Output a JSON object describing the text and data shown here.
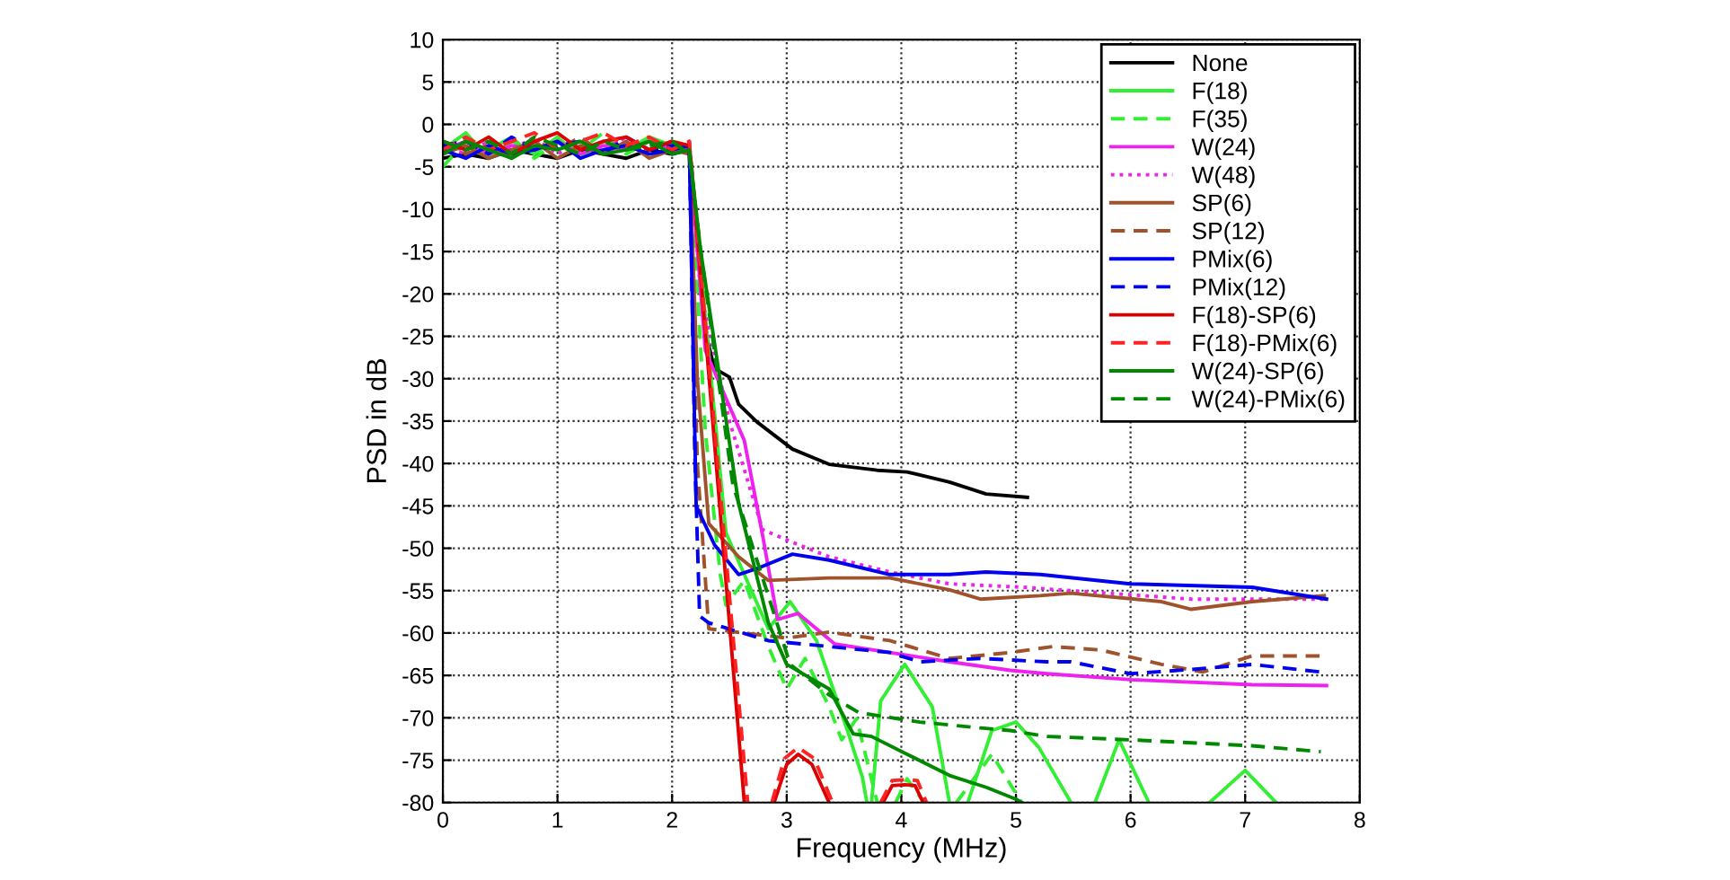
{
  "chart_data": {
    "type": "line",
    "xlabel": "Frequency (MHz)",
    "ylabel": "PSD in dB",
    "xlim": [
      0,
      8
    ],
    "ylim": [
      -80,
      10
    ],
    "xticks": [
      0,
      1,
      2,
      3,
      4,
      5,
      6,
      7,
      8
    ],
    "yticks": [
      -80,
      -75,
      -70,
      -65,
      -60,
      -55,
      -50,
      -45,
      -40,
      -35,
      -30,
      -25,
      -20,
      -15,
      -10,
      -5,
      0,
      5,
      10
    ],
    "grid": true,
    "legend": "top right",
    "marker": "none",
    "series": [
      {
        "name": "None",
        "color": "#000000",
        "line_style": "solid",
        "x": [
          0,
          0.2,
          0.4,
          0.6,
          0.8,
          1.0,
          1.2,
          1.4,
          1.6,
          1.8,
          2.0,
          2.15,
          2.29,
          2.37,
          2.5,
          2.58,
          2.74,
          3.05,
          3.37,
          3.79,
          4.05,
          4.42,
          4.74,
          5.1
        ],
        "values": [
          -4,
          -3.5,
          -4,
          -3,
          -3.5,
          -4,
          -3,
          -3.5,
          -4,
          -3,
          -3.5,
          -3,
          -24.5,
          -28.8,
          -29.8,
          -33,
          -35.1,
          -38.3,
          -40.1,
          -40.8,
          -41,
          -42.2,
          -43.6,
          -44
        ]
      },
      {
        "name": "F(18)",
        "color": "#33ee33",
        "line_style": "solid",
        "x": [
          0,
          0.2,
          0.4,
          0.6,
          0.8,
          1.0,
          1.2,
          1.4,
          1.6,
          1.8,
          2.0,
          2.15,
          2.2,
          2.47,
          2.63,
          2.84,
          3.03,
          3.26,
          3.53,
          3.66,
          3.7,
          3.72,
          3.74,
          3.82,
          4.03,
          4.27,
          4.42,
          4.5,
          4.58,
          4.79,
          5.0,
          5.2,
          5.48,
          5.6,
          5.69,
          5.9,
          6.16,
          6.4,
          6.69,
          7.0,
          7.27
        ],
        "values": [
          -3,
          -1,
          -4,
          -2,
          -3.5,
          -1.5,
          -4,
          -2,
          -3,
          -1.5,
          -2.5,
          -3,
          -10,
          -48.2,
          -53.1,
          -59.5,
          -56.3,
          -60.9,
          -71.5,
          -77,
          -80,
          null,
          -80,
          -68,
          -63.7,
          -68.7,
          -80,
          null,
          -80,
          -71.5,
          -70.5,
          -73.5,
          -80,
          null,
          -80,
          -72.6,
          -80,
          null,
          -80,
          -76.2,
          -80
        ]
      },
      {
        "name": "F(35)",
        "color": "#33ee33",
        "line_style": "dashed",
        "x": [
          0,
          0.2,
          0.4,
          0.6,
          0.8,
          1.0,
          1.2,
          1.4,
          1.6,
          1.8,
          2.0,
          2.15,
          2.29,
          2.42,
          2.47,
          2.63,
          2.84,
          3.0,
          3.16,
          3.37,
          3.48,
          3.61,
          3.79,
          3.87,
          3.95,
          4.05,
          4.2,
          4.35,
          4.48,
          4.79,
          5.05
        ],
        "values": [
          -5,
          -2,
          -3,
          -1.5,
          -4,
          -2,
          -3,
          -1,
          -3.5,
          -2,
          -3,
          -2.5,
          -36.2,
          -53.1,
          -56.7,
          -53.8,
          -61.6,
          -66.6,
          -63,
          -68.7,
          -72.6,
          -70.1,
          -80,
          null,
          -80,
          -77.2,
          -80,
          null,
          -80,
          -74.3,
          -80
        ]
      },
      {
        "name": "W(24)",
        "color": "#ee22ee",
        "line_style": "solid",
        "x": [
          0,
          0.2,
          0.4,
          0.6,
          0.8,
          1.0,
          1.2,
          1.4,
          1.6,
          1.8,
          2.0,
          2.15,
          2.29,
          2.63,
          2.79,
          2.92,
          3.1,
          3.42,
          3.9,
          4.42,
          4.95,
          5.27,
          6.0,
          7.06,
          7.71
        ],
        "values": [
          -3,
          -2,
          -3.5,
          -2.5,
          -3,
          -2,
          -3.5,
          -2.5,
          -3,
          -2,
          -3,
          -2.5,
          -26.7,
          -37.3,
          -48.5,
          -58.4,
          -57.7,
          -61.3,
          -62.3,
          -63.4,
          -64.4,
          -64.8,
          -65.5,
          -66.1,
          -66.2
        ]
      },
      {
        "name": "W(48)",
        "color": "#ee22ee",
        "line_style": "dotted",
        "x": [
          0,
          0.2,
          0.4,
          0.6,
          0.8,
          1.0,
          1.2,
          1.4,
          1.6,
          1.8,
          2.0,
          2.15,
          2.25,
          2.5,
          2.79,
          3.05,
          3.37,
          3.9,
          4.42,
          5.06,
          6.53,
          7.71
        ],
        "values": [
          -2.5,
          -3.5,
          -2,
          -3,
          -1.5,
          -3.5,
          -2,
          -3,
          -1.5,
          -3,
          -2,
          -3,
          -20,
          -35,
          -47.8,
          -49.3,
          -51,
          -52.8,
          -54.2,
          -54.6,
          -56,
          -56
        ]
      },
      {
        "name": "SP(6)",
        "color": "#a0522d",
        "line_style": "solid",
        "x": [
          0,
          0.2,
          0.4,
          0.6,
          0.8,
          1.0,
          1.2,
          1.4,
          1.6,
          1.8,
          2.0,
          2.15,
          2.22,
          2.32,
          2.58,
          2.84,
          3.37,
          3.9,
          4.42,
          4.69,
          5.21,
          5.48,
          6.27,
          6.53,
          7.06,
          7.69
        ],
        "values": [
          -3.5,
          -2.5,
          -4,
          -3,
          -2,
          -4,
          -2.5,
          -3.5,
          -2,
          -4,
          -3,
          -3.5,
          -30,
          -47.1,
          -51,
          -53.8,
          -53.5,
          -53.5,
          -54.9,
          -56,
          -55.6,
          -55.3,
          -56.3,
          -57.2,
          -56.3,
          -55.6
        ]
      },
      {
        "name": "SP(12)",
        "color": "#a0522d",
        "line_style": "dashed",
        "x": [
          0,
          0.2,
          0.4,
          0.6,
          0.8,
          1.0,
          1.2,
          1.4,
          1.6,
          1.8,
          2.0,
          2.15,
          2.22,
          2.32,
          3.0,
          3.37,
          3.9,
          4.42,
          4.95,
          5.32,
          5.74,
          6.27,
          6.63,
          7.06,
          7.66
        ],
        "values": [
          -2,
          -3.5,
          -2.5,
          -4,
          -2,
          -3,
          -1.5,
          -3.5,
          -2.5,
          -3,
          -2,
          -3,
          -40,
          -59.5,
          -60.6,
          -59.9,
          -60.9,
          -63,
          -62.3,
          -61.6,
          -62,
          -63.7,
          -64.6,
          -62.7,
          -62.7
        ]
      },
      {
        "name": "PMix(6)",
        "color": "#0000ee",
        "line_style": "solid",
        "x": [
          0,
          0.2,
          0.4,
          0.6,
          0.8,
          1.0,
          1.2,
          1.4,
          1.6,
          1.8,
          2.0,
          2.15,
          2.21,
          2.37,
          2.58,
          2.74,
          3.05,
          3.37,
          3.9,
          4.42,
          4.74,
          5.21,
          6.0,
          7.06,
          7.71
        ],
        "values": [
          -3,
          -4,
          -2.5,
          -3.5,
          -3,
          -2,
          -4,
          -3,
          -2.5,
          -3.5,
          -3,
          -2.5,
          -45,
          -49.6,
          -53.1,
          -52.4,
          -50.7,
          -51.4,
          -53.1,
          -53.1,
          -52.8,
          -53.1,
          -54.2,
          -54.6,
          -56
        ]
      },
      {
        "name": "PMix(12)",
        "color": "#0000ee",
        "line_style": "dashed",
        "x": [
          0,
          0.2,
          0.4,
          0.6,
          0.8,
          1.0,
          1.2,
          1.4,
          1.6,
          1.8,
          2.0,
          2.15,
          2.2,
          2.24,
          2.32,
          2.84,
          3.37,
          3.9,
          4.16,
          4.69,
          5.27,
          5.48,
          6.0,
          6.53,
          7.06,
          7.66
        ],
        "values": [
          -2.5,
          -2,
          -3.5,
          -1.5,
          -3,
          -2.5,
          -2,
          -3.5,
          -1.5,
          -3,
          -2.5,
          -2,
          -40,
          -58,
          -58.8,
          -60.9,
          -61.6,
          -62.3,
          -63.4,
          -63,
          -63.4,
          -63.4,
          -64.8,
          -64.3,
          -63.7,
          -64.6
        ]
      },
      {
        "name": "F(18)-SP(6)",
        "color": "#dd0000",
        "line_style": "solid",
        "x": [
          0,
          0.2,
          0.4,
          0.6,
          0.8,
          1.0,
          1.2,
          1.4,
          1.6,
          1.8,
          2.0,
          2.15,
          2.17,
          2.63,
          2.75,
          2.89,
          3.0,
          3.1,
          3.22,
          3.37,
          3.6,
          3.84,
          3.92,
          4.03,
          4.12,
          4.19
        ],
        "values": [
          -2,
          -3,
          -1.5,
          -3.5,
          -2,
          -1,
          -3,
          -2,
          -1.5,
          -3,
          -2,
          -2.5,
          -5,
          -80,
          null,
          -80,
          -75.5,
          -74.3,
          -75.5,
          -80,
          null,
          -80,
          -78,
          -77.9,
          -78,
          -80
        ]
      },
      {
        "name": "F(18)-PMix(6)",
        "color": "#ff2222",
        "line_style": "dashed",
        "x": [
          0,
          0.2,
          0.4,
          0.6,
          0.8,
          1.0,
          1.2,
          1.4,
          1.6,
          1.8,
          2.0,
          2.15,
          2.17,
          2.66,
          2.76,
          2.87,
          2.98,
          3.1,
          3.24,
          3.4,
          3.6,
          3.82,
          3.92,
          4.03,
          4.14,
          4.22
        ],
        "values": [
          -3,
          -1.5,
          -3,
          -2,
          -1,
          -3,
          -2,
          -1,
          -2.5,
          -1.5,
          -3,
          -2,
          -5,
          -80,
          null,
          -80,
          -74.8,
          -73.5,
          -74.8,
          -80,
          null,
          -80,
          -77.4,
          -77.3,
          -77.4,
          -80
        ]
      },
      {
        "name": "W(24)-SP(6)",
        "color": "#008800",
        "line_style": "solid",
        "x": [
          0,
          0.2,
          0.4,
          0.6,
          0.8,
          1.0,
          1.2,
          1.4,
          1.6,
          1.8,
          2.0,
          2.15,
          2.25,
          2.58,
          2.84,
          3.0,
          3.37,
          3.58,
          3.74,
          4.05,
          4.42,
          4.74,
          5.0,
          5.05
        ],
        "values": [
          -3.5,
          -2,
          -3,
          -4,
          -2.5,
          -3,
          -2,
          -3.5,
          -3,
          -2,
          -3.5,
          -3,
          -15,
          -44.7,
          -58.8,
          -63.7,
          -66.6,
          -71.9,
          -72.2,
          -74.3,
          -76.8,
          -78.2,
          -79.6,
          -80
        ]
      },
      {
        "name": "W(24)-PMix(6)",
        "color": "#008800",
        "line_style": "dashed",
        "x": [
          0,
          0.2,
          0.4,
          0.6,
          0.8,
          1.0,
          1.2,
          1.4,
          1.6,
          1.8,
          2.0,
          2.15,
          2.25,
          2.53,
          3.03,
          3.37,
          3.63,
          4.16,
          4.69,
          4.95,
          5.27,
          6.0,
          7.06,
          7.66
        ],
        "values": [
          -2,
          -3,
          -2,
          -3.5,
          -1.5,
          -2.5,
          -3.5,
          -2,
          -3,
          -2.5,
          -2,
          -3.5,
          -15,
          -42.5,
          -63.7,
          -67.3,
          -69.4,
          -70.5,
          -71.2,
          -71.5,
          -72.2,
          -72.6,
          -73.3,
          -74
        ]
      }
    ]
  }
}
